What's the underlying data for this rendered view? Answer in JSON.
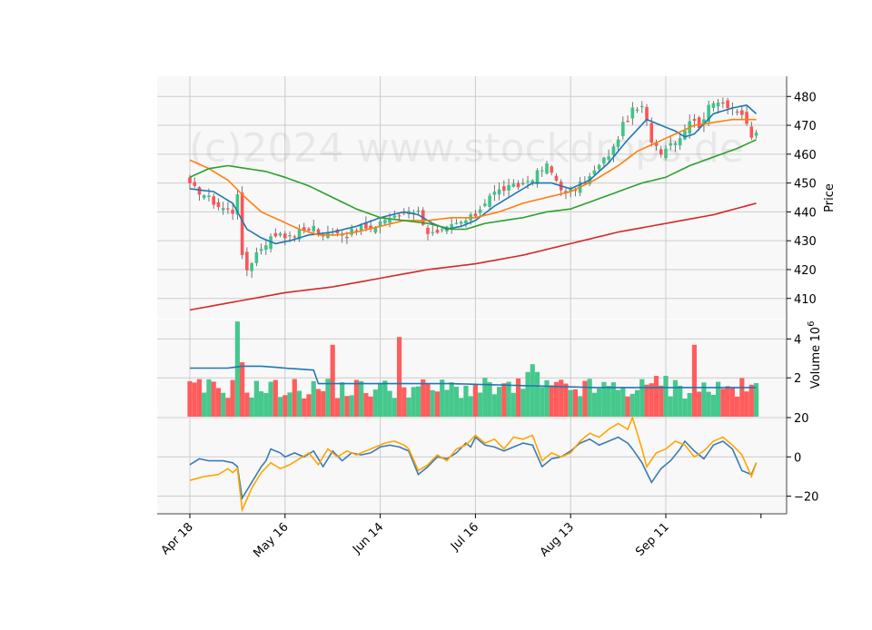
{
  "chart_data": {
    "type": "candlestick",
    "watermark": "(c)2024 www.stockdrops.de",
    "colors": {
      "up": "#3cc587",
      "down": "#ff5454",
      "panel_bg": "#f8f8f8",
      "grid": "#cccccc",
      "ma_short": "#1f77b4",
      "ma_mid": "#ff7f0e",
      "ma_long": "#2ca02c",
      "ma_xlong": "#d62728",
      "volume_ma": "#1f77b4",
      "osc_1": "#3b7bb4",
      "osc_2": "#ffa500"
    },
    "x_ticks": [
      "Apr 18",
      "May 16",
      "Jun 14",
      "Jul 16",
      "Aug 13",
      "Sep 11"
    ],
    "x_tick_index": [
      0,
      20,
      40,
      60,
      80,
      100
    ],
    "n_sessions": 120,
    "price_panel": {
      "ylabel": "Price",
      "ylim": [
        403,
        487
      ],
      "yticks": [
        410,
        420,
        430,
        440,
        450,
        460,
        470,
        480
      ],
      "close_anchors": [
        [
          0,
          449
        ],
        [
          3,
          446
        ],
        [
          6,
          442
        ],
        [
          9,
          440
        ],
        [
          10,
          447
        ],
        [
          11,
          424
        ],
        [
          12,
          420
        ],
        [
          14,
          426
        ],
        [
          17,
          431
        ],
        [
          19,
          433
        ],
        [
          21,
          431
        ],
        [
          23,
          433
        ],
        [
          26,
          435
        ],
        [
          28,
          431
        ],
        [
          30,
          434
        ],
        [
          33,
          432
        ],
        [
          36,
          435
        ],
        [
          38,
          433
        ],
        [
          40,
          437
        ],
        [
          43,
          438
        ],
        [
          46,
          441
        ],
        [
          48,
          440
        ],
        [
          50,
          433
        ],
        [
          52,
          432
        ],
        [
          55,
          435
        ],
        [
          58,
          437
        ],
        [
          60,
          439
        ],
        [
          63,
          446
        ],
        [
          66,
          448
        ],
        [
          69,
          449
        ],
        [
          72,
          452
        ],
        [
          75,
          456
        ],
        [
          77,
          451
        ],
        [
          79,
          446
        ],
        [
          81,
          448
        ],
        [
          84,
          452
        ],
        [
          87,
          458
        ],
        [
          89,
          462
        ],
        [
          91,
          470
        ],
        [
          93,
          475
        ],
        [
          95,
          476
        ],
        [
          96,
          471
        ],
        [
          97,
          465
        ],
        [
          99,
          461
        ],
        [
          101,
          464
        ],
        [
          103,
          466
        ],
        [
          105,
          472
        ],
        [
          107,
          470
        ],
        [
          109,
          476
        ],
        [
          111,
          479
        ],
        [
          113,
          477
        ],
        [
          115,
          475
        ],
        [
          117,
          470
        ],
        [
          118,
          466
        ],
        [
          119,
          467
        ]
      ],
      "ma_lines": [
        {
          "key": "ma_short",
          "anchors": [
            [
              0,
              448
            ],
            [
              5,
              447
            ],
            [
              9,
              443
            ],
            [
              12,
              434
            ],
            [
              15,
              431
            ],
            [
              18,
              429
            ],
            [
              21,
              430
            ],
            [
              25,
              432
            ],
            [
              30,
              433
            ],
            [
              35,
              435
            ],
            [
              40,
              438
            ],
            [
              45,
              440
            ],
            [
              48,
              439
            ],
            [
              51,
              436
            ],
            [
              54,
              434
            ],
            [
              57,
              435
            ],
            [
              60,
              437
            ],
            [
              64,
              442
            ],
            [
              68,
              446
            ],
            [
              72,
              450
            ],
            [
              76,
              450
            ],
            [
              80,
              448
            ],
            [
              84,
              451
            ],
            [
              88,
              457
            ],
            [
              92,
              465
            ],
            [
              96,
              472
            ],
            [
              99,
              470
            ],
            [
              102,
              468
            ],
            [
              104,
              466
            ],
            [
              106,
              467
            ],
            [
              110,
              474
            ],
            [
              114,
              476
            ],
            [
              117,
              477
            ],
            [
              119,
              474
            ]
          ]
        },
        {
          "key": "ma_mid",
          "anchors": [
            [
              0,
              458
            ],
            [
              4,
              455
            ],
            [
              8,
              451
            ],
            [
              11,
              446
            ],
            [
              15,
              440
            ],
            [
              19,
              437
            ],
            [
              23,
              434
            ],
            [
              27,
              432
            ],
            [
              31,
              432
            ],
            [
              35,
              433
            ],
            [
              40,
              435
            ],
            [
              45,
              437
            ],
            [
              50,
              437
            ],
            [
              55,
              438
            ],
            [
              60,
              438
            ],
            [
              65,
              440
            ],
            [
              70,
              443
            ],
            [
              75,
              445
            ],
            [
              80,
              447
            ],
            [
              85,
              451
            ],
            [
              90,
              456
            ],
            [
              94,
              461
            ],
            [
              98,
              464
            ],
            [
              102,
              467
            ],
            [
              106,
              470
            ],
            [
              110,
              471
            ],
            [
              114,
              472
            ],
            [
              119,
              472
            ]
          ]
        },
        {
          "key": "ma_long",
          "anchors": [
            [
              0,
              452
            ],
            [
              4,
              455
            ],
            [
              8,
              456
            ],
            [
              12,
              455
            ],
            [
              16,
              454
            ],
            [
              20,
              452
            ],
            [
              25,
              449
            ],
            [
              30,
              445
            ],
            [
              35,
              441
            ],
            [
              40,
              438
            ],
            [
              45,
              437
            ],
            [
              50,
              436
            ],
            [
              55,
              434
            ],
            [
              58,
              434
            ],
            [
              62,
              436
            ],
            [
              66,
              437
            ],
            [
              70,
              438
            ],
            [
              75,
              440
            ],
            [
              80,
              441
            ],
            [
              85,
              444
            ],
            [
              90,
              447
            ],
            [
              95,
              450
            ],
            [
              100,
              452
            ],
            [
              105,
              456
            ],
            [
              110,
              459
            ],
            [
              115,
              462
            ],
            [
              119,
              465
            ]
          ]
        },
        {
          "key": "ma_xlong",
          "anchors": [
            [
              0,
              406
            ],
            [
              10,
              409
            ],
            [
              20,
              412
            ],
            [
              30,
              414
            ],
            [
              40,
              417
            ],
            [
              50,
              420
            ],
            [
              60,
              422
            ],
            [
              70,
              425
            ],
            [
              80,
              429
            ],
            [
              90,
              433
            ],
            [
              100,
              436
            ],
            [
              110,
              439
            ],
            [
              119,
              443
            ]
          ]
        }
      ]
    },
    "volume_panel": {
      "ylabel": "Volume",
      "yunit": "10^6",
      "ylim": [
        0,
        5
      ],
      "yticks": [
        2,
        4
      ],
      "spikes": [
        [
          10,
          4.9
        ],
        [
          11,
          2.8
        ],
        [
          30,
          3.7
        ],
        [
          44,
          4.1
        ],
        [
          72,
          2.7
        ],
        [
          71,
          2.3
        ],
        [
          73,
          2.3
        ],
        [
          106,
          3.7
        ],
        [
          98,
          2.1
        ],
        [
          100,
          2.1
        ]
      ],
      "ma_anchors": [
        [
          0,
          2.5
        ],
        [
          8,
          2.5
        ],
        [
          11,
          2.6
        ],
        [
          15,
          2.6
        ],
        [
          20,
          2.5
        ],
        [
          26,
          2.4
        ],
        [
          27,
          1.7
        ],
        [
          40,
          1.7
        ],
        [
          55,
          1.7
        ],
        [
          70,
          1.6
        ],
        [
          85,
          1.5
        ],
        [
          100,
          1.5
        ],
        [
          106,
          1.5
        ],
        [
          119,
          1.5
        ]
      ]
    },
    "oscillator_panel": {
      "ylim": [
        -29,
        20
      ],
      "yticks": [
        -20,
        0,
        20
      ],
      "series_1_anchors": [
        [
          0,
          -4
        ],
        [
          2,
          -1
        ],
        [
          4,
          -2
        ],
        [
          7,
          -2
        ],
        [
          9,
          -3
        ],
        [
          10,
          -5
        ],
        [
          11,
          -21
        ],
        [
          13,
          -13
        ],
        [
          15,
          -5
        ],
        [
          16,
          -2
        ],
        [
          17,
          4
        ],
        [
          19,
          2
        ],
        [
          20,
          0
        ],
        [
          22,
          2
        ],
        [
          24,
          0
        ],
        [
          26,
          3
        ],
        [
          28,
          -5
        ],
        [
          30,
          3
        ],
        [
          32,
          -2
        ],
        [
          34,
          2
        ],
        [
          36,
          1
        ],
        [
          38,
          2
        ],
        [
          40,
          5
        ],
        [
          42,
          6
        ],
        [
          44,
          5
        ],
        [
          46,
          3
        ],
        [
          48,
          -9
        ],
        [
          50,
          -5
        ],
        [
          52,
          0
        ],
        [
          54,
          -1
        ],
        [
          56,
          2
        ],
        [
          58,
          7
        ],
        [
          59,
          5
        ],
        [
          60,
          10
        ],
        [
          62,
          6
        ],
        [
          64,
          5
        ],
        [
          66,
          3
        ],
        [
          68,
          5
        ],
        [
          70,
          7
        ],
        [
          72,
          6
        ],
        [
          74,
          -5
        ],
        [
          76,
          -1
        ],
        [
          78,
          0
        ],
        [
          80,
          3
        ],
        [
          82,
          7
        ],
        [
          84,
          9
        ],
        [
          86,
          6
        ],
        [
          88,
          8
        ],
        [
          90,
          10
        ],
        [
          92,
          7
        ],
        [
          93,
          4
        ],
        [
          95,
          -3
        ],
        [
          97,
          -13
        ],
        [
          99,
          -6
        ],
        [
          101,
          -2
        ],
        [
          103,
          4
        ],
        [
          104,
          8
        ],
        [
          106,
          3
        ],
        [
          108,
          -1
        ],
        [
          110,
          6
        ],
        [
          112,
          8
        ],
        [
          114,
          4
        ],
        [
          116,
          -7
        ],
        [
          118,
          -9
        ],
        [
          119,
          -3
        ]
      ],
      "series_2_anchors": [
        [
          0,
          -12
        ],
        [
          3,
          -10
        ],
        [
          6,
          -9
        ],
        [
          8,
          -6
        ],
        [
          9,
          -8
        ],
        [
          10,
          -6
        ],
        [
          11,
          -27
        ],
        [
          13,
          -16
        ],
        [
          15,
          -8
        ],
        [
          17,
          -3
        ],
        [
          19,
          -6
        ],
        [
          21,
          -4
        ],
        [
          23,
          -1
        ],
        [
          25,
          2
        ],
        [
          27,
          -4
        ],
        [
          29,
          4
        ],
        [
          31,
          0
        ],
        [
          33,
          3
        ],
        [
          35,
          1
        ],
        [
          37,
          3
        ],
        [
          39,
          5
        ],
        [
          41,
          7
        ],
        [
          43,
          8
        ],
        [
          45,
          6
        ],
        [
          46,
          4
        ],
        [
          48,
          -7
        ],
        [
          50,
          -4
        ],
        [
          52,
          1
        ],
        [
          54,
          -2
        ],
        [
          56,
          4
        ],
        [
          58,
          6
        ],
        [
          60,
          11
        ],
        [
          62,
          7
        ],
        [
          64,
          9
        ],
        [
          66,
          4
        ],
        [
          68,
          10
        ],
        [
          70,
          9
        ],
        [
          72,
          11
        ],
        [
          74,
          -2
        ],
        [
          76,
          2
        ],
        [
          78,
          0
        ],
        [
          80,
          2
        ],
        [
          82,
          8
        ],
        [
          84,
          12
        ],
        [
          86,
          10
        ],
        [
          88,
          14
        ],
        [
          90,
          17
        ],
        [
          92,
          14
        ],
        [
          93,
          20
        ],
        [
          95,
          4
        ],
        [
          96,
          -5
        ],
        [
          98,
          2
        ],
        [
          100,
          4
        ],
        [
          102,
          8
        ],
        [
          104,
          6
        ],
        [
          106,
          0
        ],
        [
          108,
          3
        ],
        [
          110,
          8
        ],
        [
          112,
          10
        ],
        [
          114,
          6
        ],
        [
          116,
          1
        ],
        [
          118,
          -10
        ],
        [
          119,
          -3
        ]
      ]
    }
  }
}
